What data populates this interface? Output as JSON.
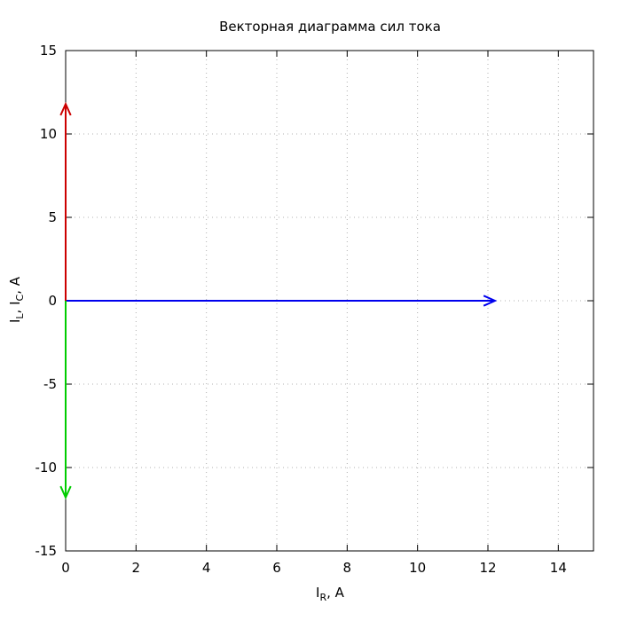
{
  "chart_data": {
    "type": "line",
    "title": "Векторная диаграмма сил тока",
    "xlabel": {
      "main": "I",
      "sub": "R",
      "suffix": ", A"
    },
    "ylabel": {
      "parts": [
        {
          "main": "I",
          "sub": "L",
          "suffix": ", "
        },
        {
          "main": "I",
          "sub": "C",
          "suffix": ", A"
        }
      ]
    },
    "xlim": [
      0,
      15
    ],
    "ylim": [
      -15,
      15
    ],
    "xticks": [
      0,
      2,
      4,
      6,
      8,
      10,
      12,
      14
    ],
    "yticks": [
      -15,
      -10,
      -5,
      0,
      5,
      10,
      15
    ],
    "xtick_labels": [
      "0",
      "2",
      "4",
      "6",
      "8",
      "10",
      "12",
      "14"
    ],
    "ytick_labels": [
      "-15",
      "-10",
      "-5",
      "0",
      "5",
      "10",
      "15"
    ],
    "grid": true,
    "vectors": [
      {
        "from": [
          0,
          0
        ],
        "to": [
          12.2,
          0
        ],
        "color": "#0000ee"
      },
      {
        "from": [
          0,
          0
        ],
        "to": [
          0,
          11.8
        ],
        "color": "#cc0000"
      },
      {
        "from": [
          0,
          0
        ],
        "to": [
          0,
          -11.8
        ],
        "color": "#00cc00"
      }
    ]
  }
}
